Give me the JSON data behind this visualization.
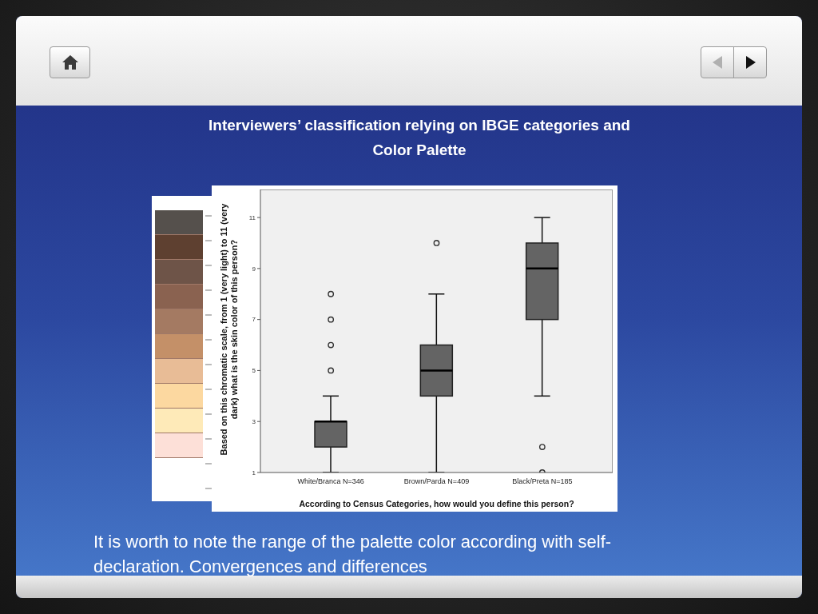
{
  "chart_data": {
    "type": "box",
    "title": "Interviewers’ classification relying on IBGE categories and Color Palette",
    "xlabel": "According to Census Categories, how would you define this person?",
    "ylabel": "Based on this chromatic scale, from 1 (very light) to 11 (very dark) what is the skin color of this person?",
    "annotations": [
      "It is worth to note the range of the palette color according with self-declaration. Convergences and differences"
    ],
    "categories": [
      "White/Branca N=346",
      "Brown/Parda N=409",
      "Black/Preta N=185"
    ],
    "boxes": [
      {
        "low": 1,
        "q1": 2,
        "median": 3,
        "q3": 3,
        "high": 4,
        "outliers": [
          5,
          6,
          7,
          8
        ]
      },
      {
        "low": 1,
        "q1": 4,
        "median": 5,
        "q3": 6,
        "high": 8,
        "outliers": [
          10
        ]
      },
      {
        "low": 4,
        "q1": 7,
        "median": 9,
        "q3": 10,
        "high": 11,
        "outliers": [
          2,
          1
        ]
      }
    ],
    "color": "#646464",
    "ylim": [
      1,
      12.1
    ],
    "yticks": [
      1,
      3,
      5,
      7,
      9,
      11
    ]
  }
}
